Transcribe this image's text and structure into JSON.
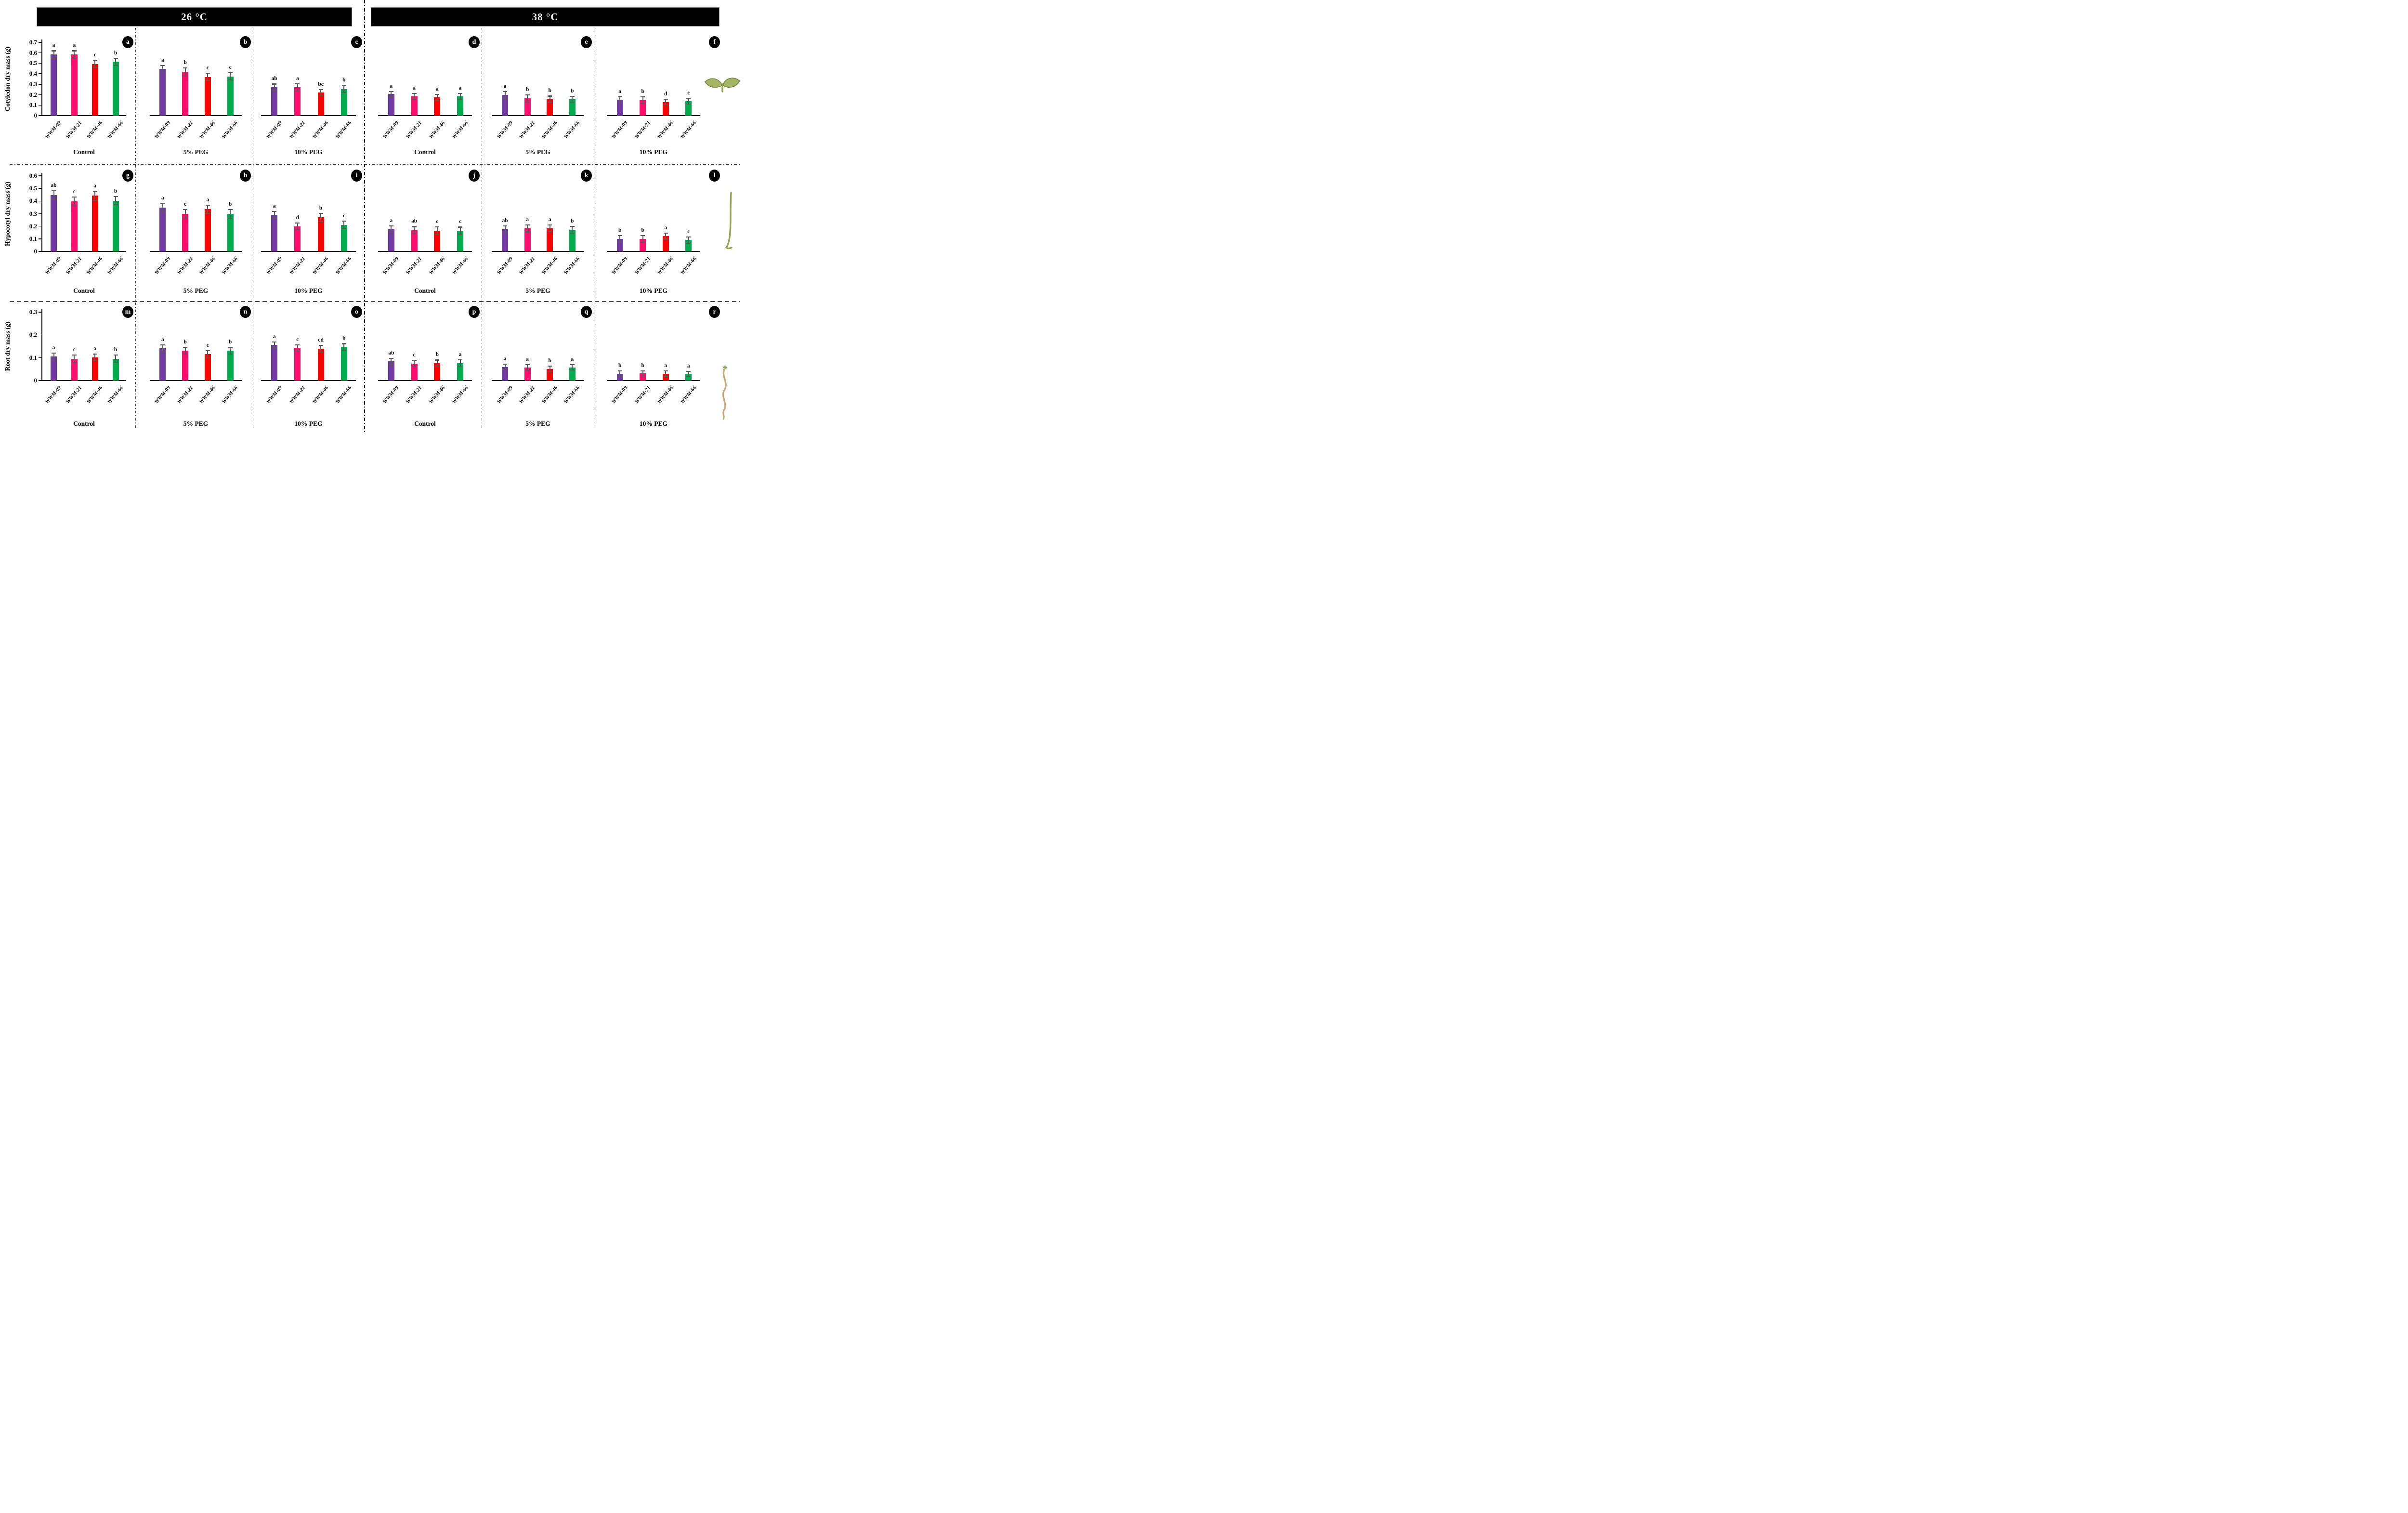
{
  "header": {
    "left_label": "26 °C",
    "right_label": "38 °C"
  },
  "icons": {
    "row_0": "seedling-cotyledon-icon",
    "row_1": "hypocotyl-icon",
    "row_2": "root-icon"
  },
  "chart_data": {
    "type": "bar",
    "description": "18-panel grouped bar figure; dry mass of watermelon cultivars under Control / 5% PEG / 10% PEG at 26 and 38 degrees C; error bars and significance letters shown",
    "cultivars": [
      "WWM-09",
      "WWM-21",
      "WWM-46",
      "WWM-66"
    ],
    "bar_colors": [
      "#7239A3",
      "#FF0E6E",
      "#FE0000",
      "#00AC4E"
    ],
    "error_bar_color": "#595959",
    "temperatures": [
      "26 °C",
      "38 °C"
    ],
    "treatments": [
      "Control",
      "5% PEG",
      "10% PEG"
    ],
    "legend_position": "none",
    "grid": "off",
    "rows": [
      {
        "label": "Cotyledon dry mass (g)",
        "ylim": [
          0,
          0.7
        ],
        "yticks": [
          0,
          0.1,
          0.2,
          0.3,
          0.4,
          0.5,
          0.6,
          0.7
        ]
      },
      {
        "label": "Hypocotyl dry mass (g)",
        "ylim": [
          0,
          0.6
        ],
        "yticks": [
          0,
          0.1,
          0.2,
          0.3,
          0.4,
          0.5,
          0.6
        ]
      },
      {
        "label": "Root dry mass (g)",
        "ylim": [
          0,
          0.3
        ],
        "yticks": [
          0,
          0.1,
          0.2,
          0.3
        ]
      }
    ],
    "panels": [
      {
        "id": "a",
        "row": 0,
        "col": 0,
        "temperature": "26 °C",
        "treatment": "Control",
        "values": [
          0.585,
          0.585,
          0.495,
          0.515
        ],
        "errors": [
          0.035,
          0.035,
          0.035,
          0.035
        ],
        "letters": [
          "a",
          "a",
          "c",
          "b"
        ]
      },
      {
        "id": "b",
        "row": 0,
        "col": 1,
        "temperature": "26 °C",
        "treatment": "5% PEG",
        "values": [
          0.445,
          0.42,
          0.37,
          0.375
        ],
        "errors": [
          0.033,
          0.035,
          0.035,
          0.035
        ],
        "letters": [
          "a",
          "b",
          "c",
          "c"
        ]
      },
      {
        "id": "c",
        "row": 0,
        "col": 2,
        "temperature": "26 °C",
        "treatment": "10% PEG",
        "values": [
          0.27,
          0.27,
          0.22,
          0.255
        ],
        "errors": [
          0.032,
          0.035,
          0.03,
          0.033
        ],
        "letters": [
          "ab",
          "a",
          "bc",
          "b"
        ]
      },
      {
        "id": "d",
        "row": 0,
        "col": 3,
        "temperature": "38 °C",
        "treatment": "Control",
        "values": [
          0.205,
          0.185,
          0.175,
          0.185
        ],
        "errors": [
          0.025,
          0.028,
          0.028,
          0.028
        ],
        "letters": [
          "a",
          "a",
          "a",
          "a"
        ]
      },
      {
        "id": "e",
        "row": 0,
        "col": 4,
        "temperature": "38 °C",
        "treatment": "5% PEG",
        "values": [
          0.197,
          0.165,
          0.157,
          0.157
        ],
        "errors": [
          0.033,
          0.035,
          0.03,
          0.028
        ],
        "letters": [
          "a",
          "b",
          "b",
          "b"
        ]
      },
      {
        "id": "f",
        "row": 0,
        "col": 5,
        "temperature": "38 °C",
        "treatment": "10% PEG",
        "values": [
          0.152,
          0.148,
          0.13,
          0.139
        ],
        "errors": [
          0.028,
          0.033,
          0.028,
          0.028
        ],
        "letters": [
          "a",
          "b",
          "d",
          "c"
        ]
      },
      {
        "id": "g",
        "row": 1,
        "col": 0,
        "temperature": "26 °C",
        "treatment": "Control",
        "values": [
          0.446,
          0.399,
          0.442,
          0.403
        ],
        "errors": [
          0.035,
          0.033,
          0.035,
          0.032
        ],
        "letters": [
          "ab",
          "c",
          "a",
          "b"
        ]
      },
      {
        "id": "h",
        "row": 1,
        "col": 1,
        "temperature": "26 °C",
        "treatment": "5% PEG",
        "values": [
          0.349,
          0.299,
          0.335,
          0.299
        ],
        "errors": [
          0.033,
          0.034,
          0.032,
          0.034
        ],
        "letters": [
          "a",
          "c",
          "a",
          "b"
        ]
      },
      {
        "id": "i",
        "row": 1,
        "col": 2,
        "temperature": "26 °C",
        "treatment": "10% PEG",
        "values": [
          0.291,
          0.198,
          0.27,
          0.212
        ],
        "errors": [
          0.028,
          0.027,
          0.032,
          0.028
        ],
        "letters": [
          "a",
          "d",
          "b",
          "c"
        ]
      },
      {
        "id": "j",
        "row": 1,
        "col": 3,
        "temperature": "38 °C",
        "treatment": "Control",
        "values": [
          0.176,
          0.169,
          0.165,
          0.165
        ],
        "errors": [
          0.027,
          0.028,
          0.03,
          0.028
        ],
        "letters": [
          "a",
          "ab",
          "c",
          "c"
        ]
      },
      {
        "id": "k",
        "row": 1,
        "col": 4,
        "temperature": "38 °C",
        "treatment": "5% PEG",
        "values": [
          0.176,
          0.183,
          0.183,
          0.173
        ],
        "errors": [
          0.027,
          0.028,
          0.027,
          0.026
        ],
        "letters": [
          "ab",
          "a",
          "a",
          "b"
        ]
      },
      {
        "id": "l",
        "row": 1,
        "col": 5,
        "temperature": "38 °C",
        "treatment": "10% PEG",
        "values": [
          0.101,
          0.101,
          0.122,
          0.09
        ],
        "errors": [
          0.026,
          0.027,
          0.024,
          0.026
        ],
        "letters": [
          "b",
          "b",
          "a",
          "c"
        ]
      },
      {
        "id": "m",
        "row": 2,
        "col": 0,
        "temperature": "26 °C",
        "treatment": "Control",
        "values": [
          0.105,
          0.096,
          0.101,
          0.096
        ],
        "errors": [
          0.016,
          0.017,
          0.015,
          0.016
        ],
        "letters": [
          "a",
          "c",
          "a",
          "b"
        ]
      },
      {
        "id": "n",
        "row": 2,
        "col": 1,
        "temperature": "26 °C",
        "treatment": "5% PEG",
        "values": [
          0.141,
          0.131,
          0.116,
          0.131
        ],
        "errors": [
          0.015,
          0.015,
          0.016,
          0.014
        ],
        "letters": [
          "a",
          "b",
          "c",
          "b"
        ]
      },
      {
        "id": "o",
        "row": 2,
        "col": 2,
        "temperature": "26 °C",
        "treatment": "10% PEG",
        "values": [
          0.156,
          0.143,
          0.139,
          0.148
        ],
        "errors": [
          0.013,
          0.014,
          0.015,
          0.014
        ],
        "letters": [
          "a",
          "c",
          "cd",
          "b"
        ]
      },
      {
        "id": "p",
        "row": 2,
        "col": 3,
        "temperature": "38 °C",
        "treatment": "Control",
        "values": [
          0.084,
          0.075,
          0.077,
          0.077
        ],
        "errors": [
          0.013,
          0.014,
          0.013,
          0.014
        ],
        "letters": [
          "ab",
          "c",
          "b",
          "a"
        ]
      },
      {
        "id": "q",
        "row": 2,
        "col": 4,
        "temperature": "38 °C",
        "treatment": "5% PEG",
        "values": [
          0.06,
          0.058,
          0.051,
          0.058
        ],
        "errors": [
          0.012,
          0.012,
          0.013,
          0.012
        ],
        "letters": [
          "a",
          "a",
          "b",
          "a"
        ]
      },
      {
        "id": "r",
        "row": 2,
        "col": 5,
        "temperature": "38 °C",
        "treatment": "10% PEG",
        "values": [
          0.03,
          0.032,
          0.03,
          0.03
        ],
        "errors": [
          0.012,
          0.011,
          0.012,
          0.011
        ],
        "letters": [
          "b",
          "b",
          "a",
          "a"
        ]
      }
    ]
  }
}
